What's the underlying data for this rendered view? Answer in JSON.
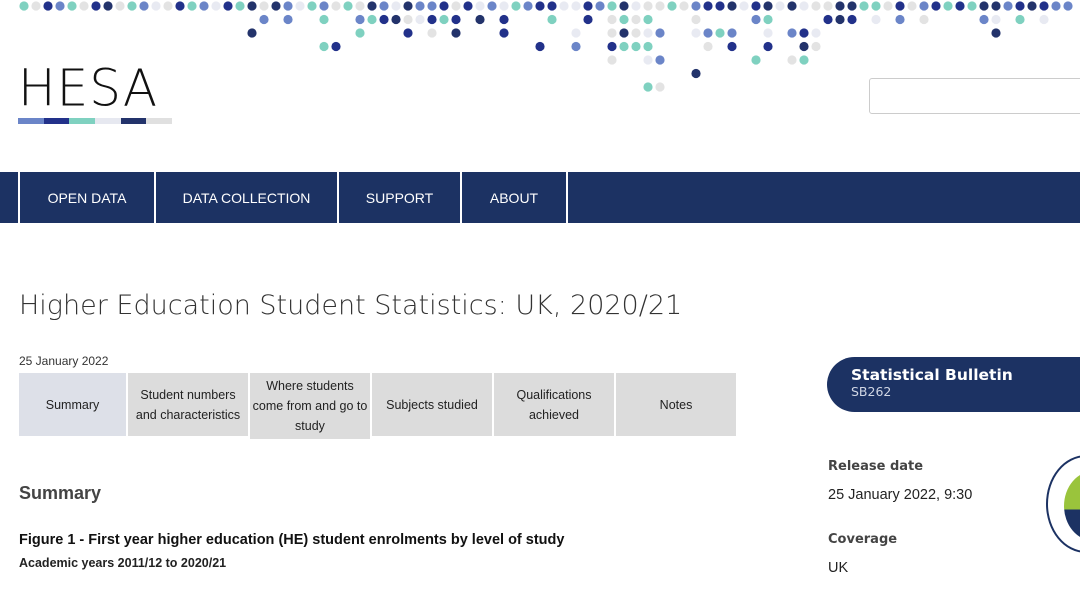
{
  "header": {
    "logo": "HESA",
    "logo_colors": [
      "#6b85c8",
      "#22318a",
      "#7fd1c0",
      "#e6e8f0",
      "#23336b",
      "#e0e0e0"
    ],
    "search_placeholder": ""
  },
  "nav": {
    "items": [
      "OPEN DATA",
      "DATA COLLECTION",
      "SUPPORT",
      "ABOUT"
    ]
  },
  "page": {
    "title": "Higher Education Student Statistics: UK, 2020/21",
    "date": "25 January 2022",
    "tabs": [
      "Summary",
      "Student numbers and characteristics",
      "Where students come from and go to study",
      "Subjects studied",
      "Qualifications achieved",
      "Notes"
    ],
    "section": "Summary",
    "figure_title": "Figure 1 - First year higher education (HE) student enrolments by level of study",
    "figure_subtitle": "Academic years 2011/12 to 2020/21"
  },
  "sidebar": {
    "bulletin_title": "Statistical Bulletin",
    "bulletin_code": "SB262",
    "release_label": "Release date",
    "release_value": "25 January 2022, 9:30",
    "coverage_label": "Coverage",
    "coverage_value": "UK"
  },
  "colors": {
    "navy": "#1c3263",
    "teal": "#7fd1c0",
    "blue": "#6b85c8",
    "dark": "#22318a",
    "grey": "#e3e3e3"
  }
}
